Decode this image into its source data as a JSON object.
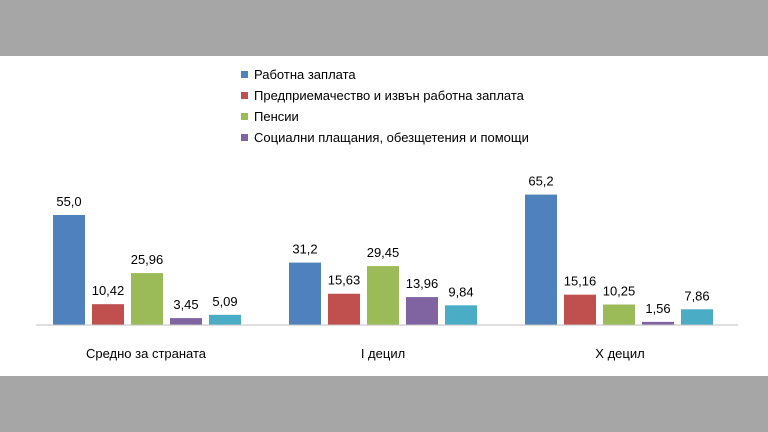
{
  "chart_data": {
    "type": "bar",
    "title": "",
    "xlabel": "",
    "ylabel": "",
    "ylim": [
      0,
      70
    ],
    "grid": false,
    "legend_position": "top-center",
    "categories": [
      "Средно за страната",
      "I децил",
      "X децил"
    ],
    "series": [
      {
        "name": "Работна заплата",
        "color": "#4f81bd",
        "values": [
          55.0,
          31.2,
          65.2
        ],
        "labels": [
          "55,0",
          "31,2",
          "65,2"
        ]
      },
      {
        "name": "Предприемачество и извън работна заплата",
        "color": "#c0504d",
        "values": [
          10.42,
          15.63,
          15.16
        ],
        "labels": [
          "10,42",
          "15,63",
          "15,16"
        ]
      },
      {
        "name": "Пенсии",
        "color": "#9bbb59",
        "values": [
          25.96,
          29.45,
          10.25
        ],
        "labels": [
          "25,96",
          "29,45",
          "10,25"
        ]
      },
      {
        "name": "Социални плащания, обезщетения и помощи",
        "color": "#8064a2",
        "values": [
          3.45,
          13.96,
          1.56
        ],
        "labels": [
          "3,45",
          "13,96",
          "1,56"
        ]
      },
      {
        "name": "",
        "color": "#4bacc6",
        "values": [
          5.09,
          9.84,
          7.86
        ],
        "labels": [
          "5,09",
          "9,84",
          "7,86"
        ]
      }
    ]
  }
}
